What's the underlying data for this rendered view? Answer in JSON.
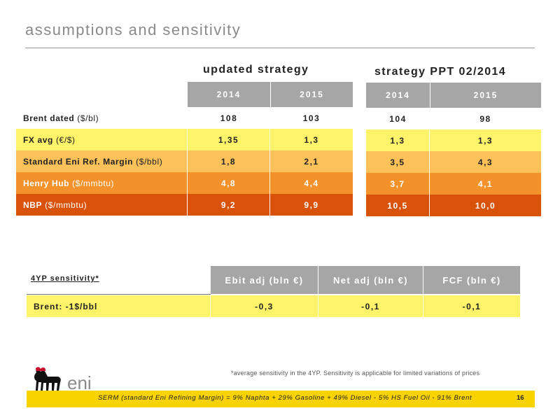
{
  "page": {
    "title": "assumptions and sensitivity",
    "page_number": "16"
  },
  "updated": {
    "heading": "updated strategy",
    "years": [
      "2014",
      "2015"
    ]
  },
  "ppt": {
    "heading": "strategy PPT 02/2014",
    "years": [
      "2014",
      "2015"
    ]
  },
  "rows": [
    {
      "name": "Brent dated",
      "unit": "($/bl)",
      "u2014": "108",
      "u2015": "103",
      "p2014": "104",
      "p2015": "98",
      "color": "#ffffff"
    },
    {
      "name": "FX avg",
      "unit": "(€/$)",
      "u2014": "1,35",
      "u2015": "1,3",
      "p2014": "1,3",
      "p2015": "1,3",
      "color": "#fff36a"
    },
    {
      "name": "Standard Eni Ref. Margin",
      "unit": "($/bbl)",
      "u2014": "1,8",
      "u2015": "2,1",
      "p2014": "3,5",
      "p2015": "4,3",
      "color": "#fdc15a"
    },
    {
      "name": "Henry Hub",
      "unit": "($/mmbtu)",
      "u2014": "4,8",
      "u2015": "4,4",
      "p2014": "3,7",
      "p2015": "4,1",
      "color": "#f3922b"
    },
    {
      "name": "NBP",
      "unit": "($/mmbtu)",
      "u2014": "9,2",
      "u2015": "9,9",
      "p2014": "10,5",
      "p2015": "10,0",
      "color": "#d95209"
    }
  ],
  "sensitivity": {
    "label": "4YP sensitivity*",
    "columns": [
      "Ebit adj (bln €)",
      "Net adj (bln €)",
      "FCF (bln €)"
    ],
    "row_label": "Brent: -1$/bbl",
    "values": [
      "-0,3",
      "-0,1",
      "-0,1"
    ],
    "row_color": "#fff36a"
  },
  "footnote": "*average sensitivity in the 4YP. Sensitivity is applicable for limited variations of prices",
  "serm": "SERM (standard Eni Refining Margin) = 9% Naphta + 29% Gasoline + 49% Diesel - 5% HS Fuel Oil - 91% Brent",
  "logo": {
    "text": "eni",
    "brand_color": "#f8d300"
  }
}
